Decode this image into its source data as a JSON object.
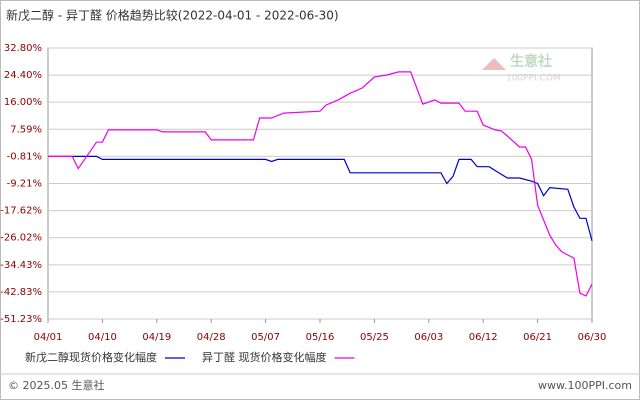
{
  "chart_data": {
    "type": "line",
    "title": "新戊二醇 - 异丁醛  价格趋势比较(2022-04-01 - 2022-06-30)",
    "watermark": "生意社",
    "watermark_sub": "100PPI.COM",
    "footer_left": "© 2025.05 生意社",
    "footer_right": "www.100PPI.com",
    "xlim": [
      "04/01",
      "06/30"
    ],
    "xticks": [
      "04/01",
      "04/10",
      "04/19",
      "04/28",
      "05/07",
      "05/16",
      "05/25",
      "06/03",
      "06/12",
      "06/21",
      "06/30"
    ],
    "ylim": [
      -51.23,
      32.8
    ],
    "yticks": [
      {
        "value": 32.8,
        "label": "32.80%"
      },
      {
        "value": 24.4,
        "label": "24.40%"
      },
      {
        "value": 16.0,
        "label": "16.00%"
      },
      {
        "value": 7.59,
        "label": "7.59%"
      },
      {
        "value": -0.81,
        "label": "-0.81%"
      },
      {
        "value": -9.21,
        "label": "-9.21%"
      },
      {
        "value": -17.62,
        "label": "-17.62%"
      },
      {
        "value": -26.02,
        "label": "-26.02%"
      },
      {
        "value": -34.43,
        "label": "-34.43%"
      },
      {
        "value": -42.83,
        "label": "-42.83%"
      },
      {
        "value": -51.23,
        "label": "-51.23%"
      }
    ],
    "grid": true,
    "series": [
      {
        "name": "新戊二醇现货价格变化幅度",
        "color": "#0000cc",
        "x": [
          "04/01",
          "04/09",
          "04/10",
          "05/07",
          "05/08",
          "05/09",
          "05/20",
          "05/21",
          "06/05",
          "06/06",
          "06/07",
          "06/08",
          "06/10",
          "06/11",
          "06/13",
          "06/14",
          "06/16",
          "06/18",
          "06/20",
          "06/21",
          "06/22",
          "06/23",
          "06/26",
          "06/27",
          "06/28",
          "06/29",
          "06/30"
        ],
        "values": [
          -0.81,
          -0.81,
          -1.74,
          -1.74,
          -2.4,
          -1.74,
          -1.74,
          -5.9,
          -5.9,
          -9.2,
          -7.0,
          -1.74,
          -1.74,
          -4.0,
          -4.0,
          -5.2,
          -7.5,
          -7.5,
          -8.5,
          -9.2,
          -13.0,
          -10.5,
          -11.0,
          -16.5,
          -20.0,
          -20.0,
          -27.0
        ]
      },
      {
        "name": "异丁醛 现货价格变化幅度",
        "color": "#ee00ee",
        "x": [
          "04/01",
          "04/05",
          "04/06",
          "04/08",
          "04/09",
          "04/10",
          "04/11",
          "04/19",
          "04/20",
          "04/27",
          "04/28",
          "05/05",
          "05/06",
          "05/08",
          "05/10",
          "05/16",
          "05/17",
          "05/19",
          "05/21",
          "05/23",
          "05/25",
          "05/27",
          "05/29",
          "05/31",
          "06/02",
          "06/04",
          "06/05",
          "06/08",
          "06/09",
          "06/11",
          "06/12",
          "06/14",
          "06/15",
          "06/16",
          "06/18",
          "06/19",
          "06/20",
          "06/21",
          "06/23",
          "06/24",
          "06/25",
          "06/26",
          "06/27",
          "06/28",
          "06/29",
          "06/30"
        ],
        "values": [
          -0.81,
          -0.81,
          -4.6,
          0.8,
          3.6,
          3.6,
          7.4,
          7.4,
          6.8,
          6.8,
          4.3,
          4.3,
          11.1,
          11.1,
          12.6,
          13.2,
          15.1,
          16.7,
          18.8,
          20.4,
          23.8,
          24.4,
          25.4,
          25.4,
          15.4,
          16.7,
          15.7,
          15.7,
          13.2,
          13.2,
          8.9,
          7.4,
          7.1,
          5.5,
          2.1,
          2.1,
          -1.7,
          -15.9,
          -25.2,
          -28.3,
          -30.4,
          -31.4,
          -32.3,
          -43.2,
          -44.1,
          -40.4
        ]
      }
    ]
  }
}
